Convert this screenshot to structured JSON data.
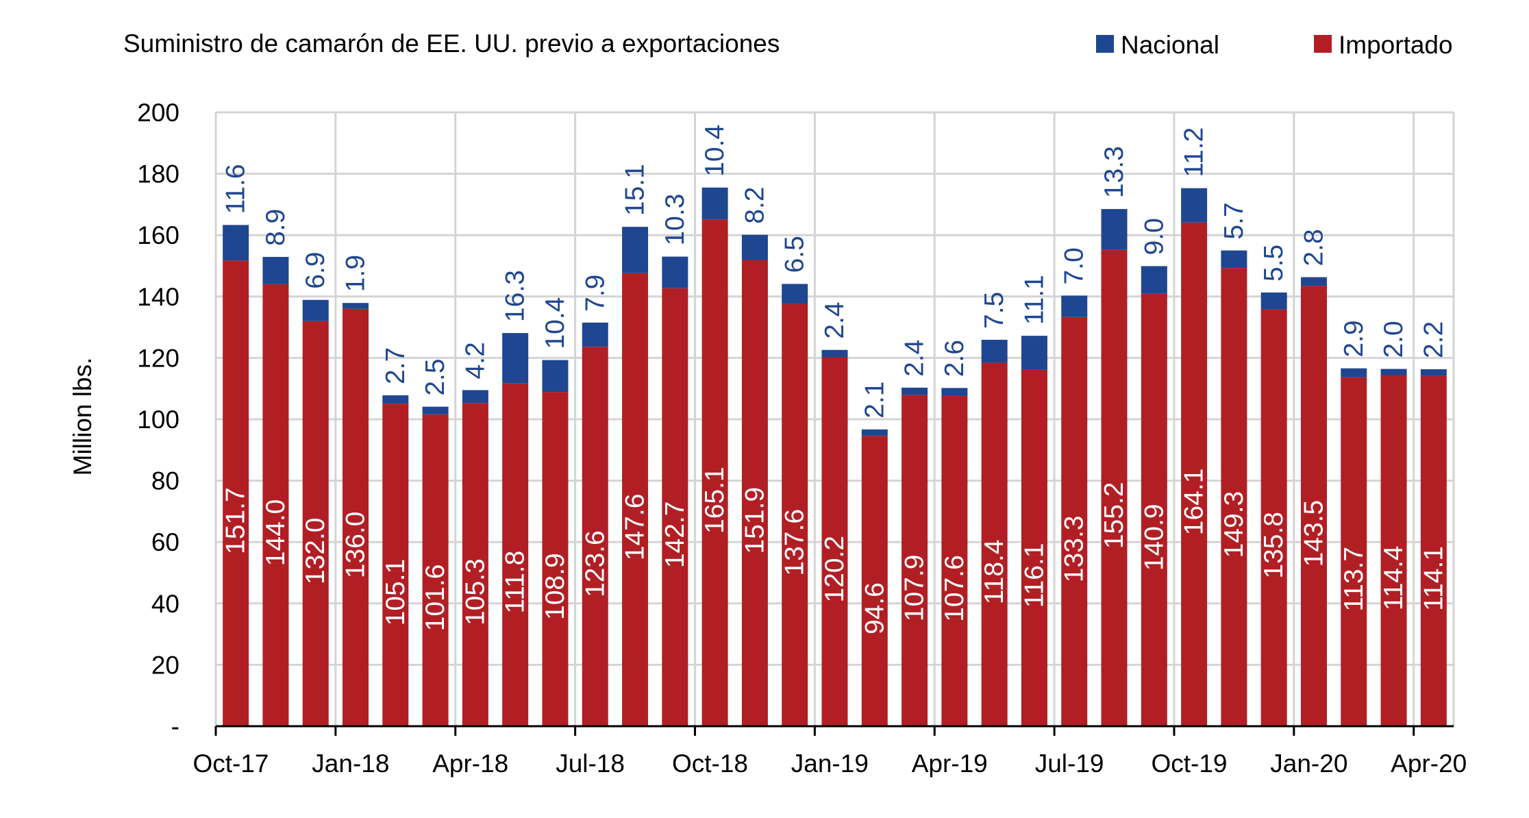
{
  "chart_data": {
    "type": "bar",
    "stacked": true,
    "title": "Suministro de camarón de EE. UU. previo a exportaciones",
    "ylabel": "Million lbs.",
    "ylim": [
      0,
      200
    ],
    "y_ticks": [
      "-",
      "20",
      "40",
      "60",
      "80",
      "100",
      "120",
      "140",
      "160",
      "180",
      "200"
    ],
    "x_tick_labels": [
      "Oct-17",
      "Jan-18",
      "Apr-18",
      "Jul-18",
      "Oct-18",
      "Jan-19",
      "Apr-19",
      "Jul-19",
      "Oct-19",
      "Jan-20",
      "Apr-20"
    ],
    "grid": true,
    "legend_position": "top-right",
    "categories": [
      "Oct-17",
      "Nov-17",
      "Dec-17",
      "Jan-18",
      "Feb-18",
      "Mar-18",
      "Apr-18",
      "May-18",
      "Jun-18",
      "Jul-18",
      "Aug-18",
      "Sep-18",
      "Oct-18",
      "Nov-18",
      "Dec-18",
      "Jan-19",
      "Feb-19",
      "Mar-19",
      "Apr-19",
      "May-19",
      "Jun-19",
      "Jul-19",
      "Aug-19",
      "Sep-19",
      "Oct-19",
      "Nov-19",
      "Dec-19",
      "Jan-20",
      "Feb-20",
      "Mar-20",
      "Apr-20"
    ],
    "series": [
      {
        "name": "Importado",
        "color": "#b11f24",
        "values": [
          151.7,
          144.0,
          132.0,
          136.0,
          105.1,
          101.6,
          105.3,
          111.8,
          108.9,
          123.6,
          147.6,
          142.7,
          165.1,
          151.9,
          137.6,
          120.2,
          94.6,
          107.9,
          107.6,
          118.4,
          116.1,
          133.3,
          155.2,
          140.9,
          164.1,
          149.3,
          135.8,
          143.5,
          113.7,
          114.4,
          114.1
        ],
        "labels": [
          "151.7",
          "144.0",
          "132.0",
          "136.0",
          "105.1",
          "101.6",
          "105.3",
          "111.8",
          "108.9",
          "123.6",
          "147.6",
          "142.7",
          "165.1",
          "151.9",
          "137.6",
          "120.2",
          "94.6",
          "107.9",
          "107.6",
          "118.4",
          "116.1",
          "133.3",
          "155.2",
          "140.9",
          "164.1",
          "149.3",
          "135.8",
          "143.5",
          "113.7",
          "114.4",
          "114.1"
        ]
      },
      {
        "name": "Nacional",
        "color": "#1f4690",
        "values": [
          11.6,
          8.9,
          6.9,
          1.9,
          2.7,
          2.5,
          4.2,
          16.3,
          10.4,
          7.9,
          15.1,
          10.3,
          10.4,
          8.2,
          6.5,
          2.4,
          2.1,
          2.4,
          2.6,
          7.5,
          11.1,
          7.0,
          13.3,
          9.0,
          11.2,
          5.7,
          5.5,
          2.8,
          2.9,
          2.0,
          2.2
        ],
        "labels": [
          "11.6",
          "8.9",
          "6.9",
          "1.9",
          "2.7",
          "2.5",
          "4.2",
          "16.3",
          "10.4",
          "7.9",
          "15.1",
          "10.3",
          "10.4",
          "8.2",
          "6.5",
          "2.4",
          "2.1",
          "2.4",
          "2.6",
          "7.5",
          "11.1",
          "7.0",
          "13.3",
          "9.0",
          "11.2",
          "5.7",
          "5.5",
          "2.8",
          "2.9",
          "2.0",
          "2.2"
        ]
      }
    ],
    "legend": [
      {
        "name": "Nacional",
        "color": "#1f4690"
      },
      {
        "name": "Importado",
        "color": "#b11f24"
      }
    ]
  }
}
